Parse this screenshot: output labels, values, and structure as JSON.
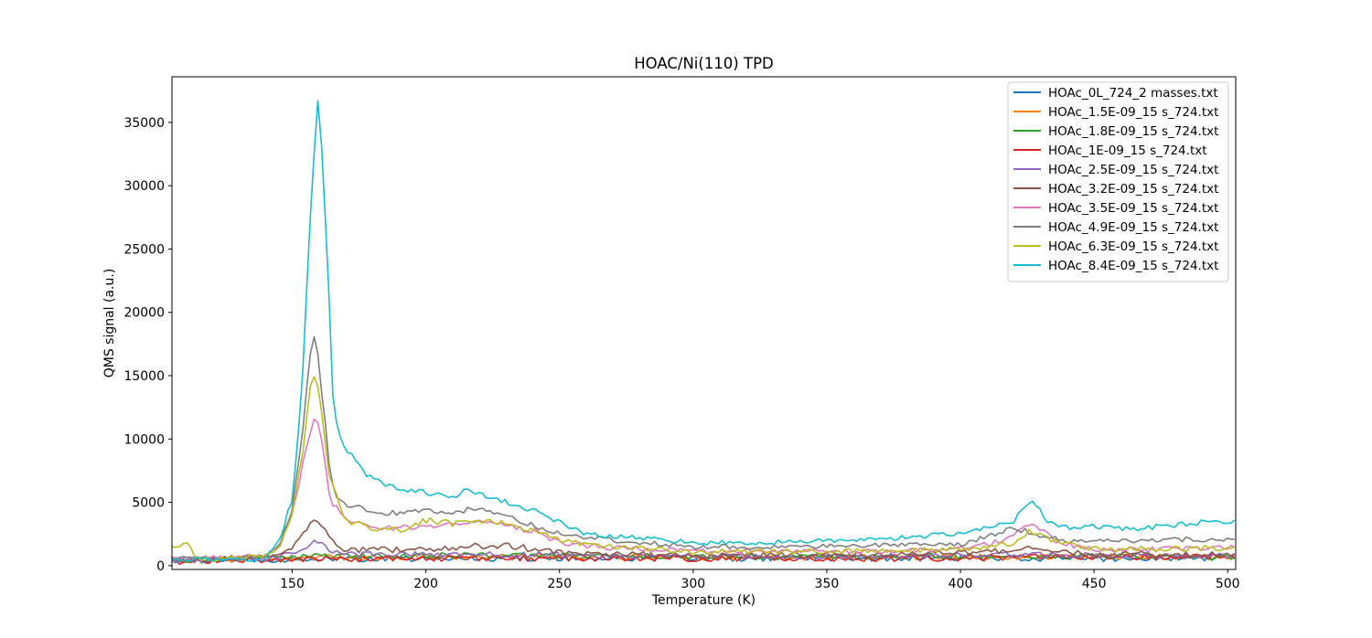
{
  "chart_data": {
    "type": "line",
    "title": "HOAC/Ni(110) TPD",
    "xlabel": "Temperature (K)",
    "ylabel": "QMS signal (a.u.)",
    "xlim": [
      105,
      503
    ],
    "ylim": [
      -300,
      38600
    ],
    "xticks": [
      150,
      200,
      250,
      300,
      350,
      400,
      450,
      500
    ],
    "yticks": [
      0,
      5000,
      10000,
      15000,
      20000,
      25000,
      30000,
      35000
    ],
    "grid": false,
    "legend_position": "top-right",
    "series": [
      {
        "name": "HOAc_0L_724_2 masses.txt",
        "color": "#1f77b4",
        "keypoints": [
          [
            105,
            400
          ],
          [
            150,
            500
          ],
          [
            200,
            550
          ],
          [
            250,
            600
          ],
          [
            300,
            550
          ],
          [
            350,
            600
          ],
          [
            400,
            600
          ],
          [
            450,
            550
          ],
          [
            503,
            600
          ]
        ],
        "noise": 230
      },
      {
        "name": "HOAc_1.5E-09_15 s_724.txt",
        "color": "#ff7f0e",
        "keypoints": [
          [
            105,
            350
          ],
          [
            150,
            600
          ],
          [
            200,
            700
          ],
          [
            250,
            750
          ],
          [
            300,
            650
          ],
          [
            350,
            650
          ],
          [
            400,
            700
          ],
          [
            450,
            700
          ],
          [
            503,
            700
          ]
        ],
        "noise": 220
      },
      {
        "name": "HOAc_1.8E-09_15 s_724.txt",
        "color": "#2ca02c",
        "keypoints": [
          [
            105,
            400
          ],
          [
            150,
            700
          ],
          [
            200,
            800
          ],
          [
            250,
            800
          ],
          [
            300,
            700
          ],
          [
            350,
            700
          ],
          [
            400,
            750
          ],
          [
            450,
            750
          ],
          [
            503,
            700
          ]
        ],
        "noise": 220
      },
      {
        "name": "HOAc_1E-09_15 s_724.txt",
        "color": "#d62728",
        "keypoints": [
          [
            105,
            300
          ],
          [
            150,
            500
          ],
          [
            200,
            550
          ],
          [
            250,
            600
          ],
          [
            300,
            550
          ],
          [
            350,
            550
          ],
          [
            400,
            600
          ],
          [
            450,
            700
          ],
          [
            503,
            650
          ]
        ],
        "noise": 230
      },
      {
        "name": "HOAc_2.5E-09_15 s_724.txt",
        "color": "#9467bd",
        "keypoints": [
          [
            105,
            400
          ],
          [
            140,
            500
          ],
          [
            152,
            1000
          ],
          [
            158,
            2000
          ],
          [
            162,
            1500
          ],
          [
            168,
            900
          ],
          [
            200,
            900
          ],
          [
            250,
            850
          ],
          [
            300,
            700
          ],
          [
            350,
            700
          ],
          [
            400,
            800
          ],
          [
            425,
            900
          ],
          [
            450,
            800
          ],
          [
            503,
            800
          ]
        ],
        "noise": 200
      },
      {
        "name": "HOAc_3.2E-09_15 s_724.txt",
        "color": "#8c564b",
        "keypoints": [
          [
            105,
            400
          ],
          [
            140,
            600
          ],
          [
            150,
            1500
          ],
          [
            155,
            2800
          ],
          [
            158,
            3700
          ],
          [
            162,
            2800
          ],
          [
            168,
            1300
          ],
          [
            200,
            1200
          ],
          [
            215,
            1500
          ],
          [
            230,
            1600
          ],
          [
            250,
            1000
          ],
          [
            300,
            800
          ],
          [
            350,
            800
          ],
          [
            400,
            1000
          ],
          [
            425,
            1300
          ],
          [
            450,
            900
          ],
          [
            503,
            900
          ]
        ],
        "noise": 230
      },
      {
        "name": "HOAc_3.5E-09_15 s_724.txt",
        "color": "#e377c2",
        "keypoints": [
          [
            105,
            500
          ],
          [
            140,
            700
          ],
          [
            145,
            1500
          ],
          [
            150,
            4000
          ],
          [
            154,
            8000
          ],
          [
            157,
            11000
          ],
          [
            159,
            12300
          ],
          [
            161,
            10000
          ],
          [
            164,
            5300
          ],
          [
            170,
            3500
          ],
          [
            180,
            3000
          ],
          [
            200,
            3000
          ],
          [
            215,
            3500
          ],
          [
            230,
            3100
          ],
          [
            240,
            2800
          ],
          [
            250,
            1800
          ],
          [
            270,
            1400
          ],
          [
            300,
            1100
          ],
          [
            350,
            1100
          ],
          [
            400,
            1300
          ],
          [
            415,
            1900
          ],
          [
            427,
            3300
          ],
          [
            435,
            2000
          ],
          [
            450,
            1200
          ],
          [
            503,
            1400
          ]
        ],
        "noise": 200
      },
      {
        "name": "HOAc_4.9E-09_15 s_724.txt",
        "color": "#7f7f7f",
        "keypoints": [
          [
            105,
            500
          ],
          [
            140,
            700
          ],
          [
            145,
            1500
          ],
          [
            150,
            4500
          ],
          [
            154,
            11000
          ],
          [
            157,
            17200
          ],
          [
            159,
            18100
          ],
          [
            161,
            14000
          ],
          [
            164,
            7800
          ],
          [
            166,
            5500
          ],
          [
            170,
            4800
          ],
          [
            180,
            4300
          ],
          [
            190,
            4100
          ],
          [
            200,
            4300
          ],
          [
            210,
            4200
          ],
          [
            220,
            4600
          ],
          [
            230,
            4000
          ],
          [
            240,
            3200
          ],
          [
            250,
            2500
          ],
          [
            270,
            2000
          ],
          [
            300,
            1500
          ],
          [
            350,
            1500
          ],
          [
            400,
            1700
          ],
          [
            410,
            2300
          ],
          [
            420,
            3000
          ],
          [
            428,
            2500
          ],
          [
            440,
            1900
          ],
          [
            460,
            1900
          ],
          [
            475,
            2100
          ],
          [
            503,
            2000
          ]
        ],
        "noise": 180
      },
      {
        "name": "HOAc_6.3E-09_15 s_724.txt",
        "color": "#bcbd22",
        "keypoints": [
          [
            105,
            1300
          ],
          [
            110,
            2000
          ],
          [
            114,
            500
          ],
          [
            140,
            700
          ],
          [
            145,
            1200
          ],
          [
            150,
            4000
          ],
          [
            154,
            9000
          ],
          [
            157,
            14300
          ],
          [
            159,
            15000
          ],
          [
            161,
            12000
          ],
          [
            164,
            6800
          ],
          [
            170,
            3500
          ],
          [
            180,
            3000
          ],
          [
            190,
            2800
          ],
          [
            200,
            3600
          ],
          [
            210,
            3300
          ],
          [
            220,
            3500
          ],
          [
            230,
            3400
          ],
          [
            240,
            2800
          ],
          [
            250,
            2000
          ],
          [
            270,
            1500
          ],
          [
            300,
            1100
          ],
          [
            350,
            1100
          ],
          [
            400,
            1300
          ],
          [
            420,
            1800
          ],
          [
            426,
            2800
          ],
          [
            432,
            2200
          ],
          [
            450,
            1300
          ],
          [
            503,
            1400
          ]
        ],
        "noise": 200
      },
      {
        "name": "HOAc_8.4E-09_15 s_724.txt",
        "color": "#17becf",
        "keypoints": [
          [
            105,
            500
          ],
          [
            140,
            500
          ],
          [
            146,
            2500
          ],
          [
            150,
            5300
          ],
          [
            152,
            9500
          ],
          [
            154,
            15500
          ],
          [
            156,
            25000
          ],
          [
            158,
            32000
          ],
          [
            160,
            37500
          ],
          [
            162,
            29000
          ],
          [
            164,
            20000
          ],
          [
            165,
            13800
          ],
          [
            167,
            10600
          ],
          [
            170,
            9300
          ],
          [
            175,
            7800
          ],
          [
            180,
            6800
          ],
          [
            185,
            6400
          ],
          [
            190,
            6000
          ],
          [
            200,
            5800
          ],
          [
            210,
            5300
          ],
          [
            215,
            6100
          ],
          [
            220,
            5600
          ],
          [
            230,
            5000
          ],
          [
            240,
            4400
          ],
          [
            250,
            3400
          ],
          [
            260,
            2500
          ],
          [
            270,
            2300
          ],
          [
            280,
            2200
          ],
          [
            290,
            2000
          ],
          [
            300,
            1800
          ],
          [
            320,
            1800
          ],
          [
            340,
            1900
          ],
          [
            360,
            2000
          ],
          [
            380,
            2200
          ],
          [
            400,
            2600
          ],
          [
            410,
            3000
          ],
          [
            420,
            3500
          ],
          [
            425,
            5000
          ],
          [
            429,
            4800
          ],
          [
            432,
            3600
          ],
          [
            440,
            3000
          ],
          [
            450,
            3100
          ],
          [
            460,
            2900
          ],
          [
            470,
            3000
          ],
          [
            480,
            3200
          ],
          [
            490,
            3400
          ],
          [
            503,
            3500
          ]
        ],
        "noise": 170
      }
    ]
  }
}
